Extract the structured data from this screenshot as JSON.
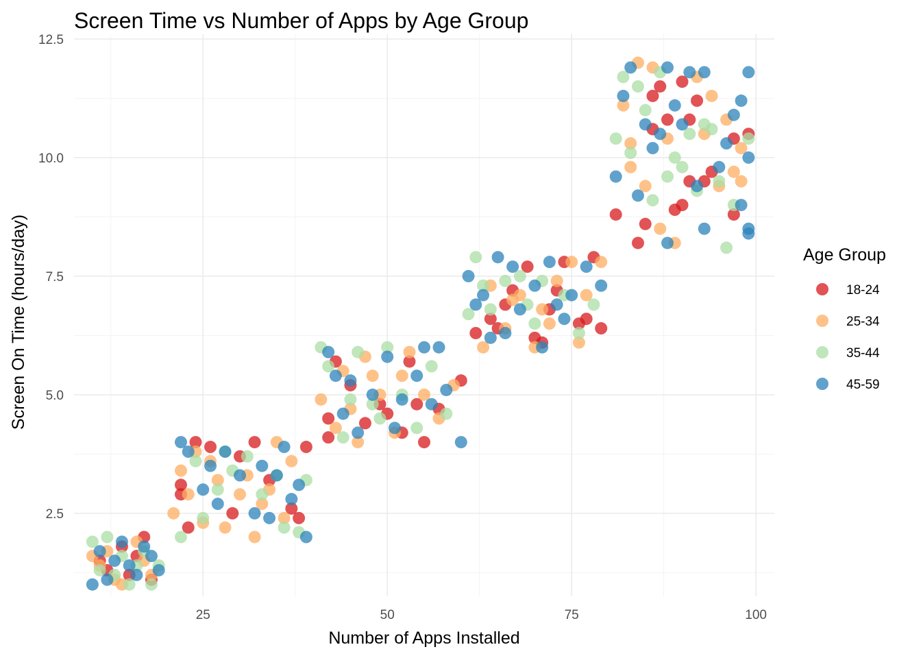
{
  "chart_data": {
    "type": "scatter",
    "title": "Screen Time vs Number of Apps by Age Group",
    "xlabel": "Number of Apps Installed",
    "ylabel": "Screen On Time (hours/day)",
    "xlim": [
      7.5,
      102.5
    ],
    "ylim": [
      0.75,
      12.6
    ],
    "x_ticks": [
      25,
      50,
      75,
      100
    ],
    "y_ticks": [
      2.5,
      5.0,
      7.5,
      10.0,
      12.5
    ],
    "x_tick_labels": [
      "25",
      "50",
      "75",
      "100"
    ],
    "y_tick_labels": [
      "2.5",
      "5.0",
      "7.5",
      "10.0",
      "12.5"
    ],
    "grid": true,
    "legend": {
      "title": "Age Group",
      "position": "right"
    },
    "series": [
      {
        "name": "18-24",
        "color": "#d7191c",
        "points": [
          [
            14,
            1.8
          ],
          [
            17,
            2.0
          ],
          [
            12,
            1.3
          ],
          [
            18,
            1.1
          ],
          [
            16,
            1.6
          ],
          [
            11,
            1.5
          ],
          [
            15,
            1.2
          ],
          [
            22,
            3.1
          ],
          [
            24,
            4.0
          ],
          [
            22,
            2.9
          ],
          [
            23,
            2.2
          ],
          [
            30,
            3.7
          ],
          [
            32,
            4.0
          ],
          [
            26,
            3.9
          ],
          [
            37,
            2.6
          ],
          [
            39,
            3.9
          ],
          [
            34,
            3.2
          ],
          [
            29,
            2.5
          ],
          [
            38,
            2.4
          ],
          [
            43,
            5.7
          ],
          [
            42,
            4.1
          ],
          [
            45,
            5.2
          ],
          [
            47,
            4.4
          ],
          [
            50,
            4.6
          ],
          [
            53,
            5.7
          ],
          [
            55,
            4.0
          ],
          [
            57,
            4.7
          ],
          [
            49,
            4.8
          ],
          [
            52,
            4.2
          ],
          [
            60,
            5.3
          ],
          [
            42,
            4.5
          ],
          [
            54,
            4.8
          ],
          [
            62,
            6.3
          ],
          [
            64,
            6.6
          ],
          [
            66,
            6.9
          ],
          [
            69,
            7.7
          ],
          [
            71,
            6.1
          ],
          [
            73,
            7.2
          ],
          [
            74,
            7.8
          ],
          [
            76,
            6.5
          ],
          [
            78,
            7.9
          ],
          [
            79,
            6.4
          ],
          [
            67,
            7.2
          ],
          [
            72,
            6.8
          ],
          [
            65,
            6.4
          ],
          [
            77,
            6.6
          ],
          [
            70,
            6.2
          ],
          [
            81,
            8.8
          ],
          [
            84,
            8.2
          ],
          [
            86,
            11.3
          ],
          [
            87,
            11.5
          ],
          [
            89,
            8.9
          ],
          [
            90,
            11.6
          ],
          [
            91,
            10.8
          ],
          [
            93,
            9.5
          ],
          [
            94,
            9.7
          ],
          [
            97,
            10.4
          ],
          [
            99,
            10.5
          ],
          [
            85,
            8.6
          ],
          [
            88,
            10.8
          ],
          [
            91,
            9.5
          ],
          [
            97,
            8.8
          ],
          [
            92,
            11.2
          ],
          [
            86,
            10.6
          ],
          [
            90,
            9.0
          ]
        ]
      },
      {
        "name": "25-34",
        "color": "#fdae61",
        "points": [
          [
            11,
            1.4
          ],
          [
            13,
            1.1
          ],
          [
            16,
            1.9
          ],
          [
            18,
            1.2
          ],
          [
            12,
            1.7
          ],
          [
            14,
            1.0
          ],
          [
            17,
            1.5
          ],
          [
            10,
            1.6
          ],
          [
            21,
            2.5
          ],
          [
            22,
            3.4
          ],
          [
            24,
            3.8
          ],
          [
            25,
            2.3
          ],
          [
            27,
            3.2
          ],
          [
            28,
            2.2
          ],
          [
            30,
            2.9
          ],
          [
            32,
            2.0
          ],
          [
            33,
            2.7
          ],
          [
            35,
            4.0
          ],
          [
            37,
            3.6
          ],
          [
            36,
            2.4
          ],
          [
            31,
            3.3
          ],
          [
            34,
            3.0
          ],
          [
            26,
            3.6
          ],
          [
            23,
            2.9
          ],
          [
            41,
            4.9
          ],
          [
            43,
            4.3
          ],
          [
            44,
            5.5
          ],
          [
            46,
            4.0
          ],
          [
            47,
            5.8
          ],
          [
            49,
            5.0
          ],
          [
            51,
            4.2
          ],
          [
            53,
            5.9
          ],
          [
            55,
            5.0
          ],
          [
            57,
            4.5
          ],
          [
            59,
            5.2
          ],
          [
            45,
            4.7
          ],
          [
            48,
            5.4
          ],
          [
            52,
            5.4
          ],
          [
            63,
            6.0
          ],
          [
            64,
            7.3
          ],
          [
            66,
            6.4
          ],
          [
            68,
            7.1
          ],
          [
            70,
            6.0
          ],
          [
            72,
            6.5
          ],
          [
            73,
            7.4
          ],
          [
            75,
            7.8
          ],
          [
            77,
            7.1
          ],
          [
            79,
            7.8
          ],
          [
            67,
            7.0
          ],
          [
            71,
            6.8
          ],
          [
            76,
            6.1
          ],
          [
            82,
            11.1
          ],
          [
            83,
            9.8
          ],
          [
            84,
            12.0
          ],
          [
            85,
            9.4
          ],
          [
            86,
            11.9
          ],
          [
            88,
            10.4
          ],
          [
            89,
            8.2
          ],
          [
            92,
            11.7
          ],
          [
            93,
            10.5
          ],
          [
            95,
            9.4
          ],
          [
            97,
            9.7
          ],
          [
            98,
            9.5
          ],
          [
            98,
            10.2
          ],
          [
            83,
            10.3
          ],
          [
            87,
            8.5
          ],
          [
            94,
            11.3
          ],
          [
            96,
            10.8
          ]
        ]
      },
      {
        "name": "35-44",
        "color": "#abdda4",
        "points": [
          [
            10,
            1.9
          ],
          [
            12,
            2.0
          ],
          [
            13,
            1.2
          ],
          [
            15,
            1.0
          ],
          [
            16,
            1.4
          ],
          [
            17,
            1.7
          ],
          [
            11,
            1.3
          ],
          [
            14,
            1.6
          ],
          [
            18,
            1.0
          ],
          [
            19,
            1.4
          ],
          [
            22,
            2.0
          ],
          [
            24,
            3.6
          ],
          [
            25,
            2.4
          ],
          [
            27,
            3.0
          ],
          [
            29,
            3.4
          ],
          [
            31,
            3.7
          ],
          [
            33,
            2.9
          ],
          [
            35,
            3.3
          ],
          [
            36,
            2.2
          ],
          [
            38,
            2.1
          ],
          [
            28,
            3.8
          ],
          [
            39,
            3.2
          ],
          [
            41,
            6.0
          ],
          [
            42,
            5.6
          ],
          [
            44,
            4.1
          ],
          [
            46,
            5.9
          ],
          [
            48,
            4.8
          ],
          [
            49,
            4.5
          ],
          [
            50,
            6.0
          ],
          [
            52,
            5.0
          ],
          [
            54,
            4.3
          ],
          [
            56,
            5.6
          ],
          [
            58,
            4.6
          ],
          [
            45,
            4.9
          ],
          [
            61,
            6.7
          ],
          [
            62,
            7.9
          ],
          [
            64,
            6.8
          ],
          [
            66,
            7.4
          ],
          [
            68,
            7.5
          ],
          [
            70,
            6.5
          ],
          [
            71,
            7.4
          ],
          [
            74,
            7.1
          ],
          [
            76,
            6.3
          ],
          [
            78,
            6.9
          ],
          [
            63,
            7.3
          ],
          [
            69,
            6.9
          ],
          [
            81,
            10.4
          ],
          [
            82,
            11.7
          ],
          [
            84,
            11.5
          ],
          [
            85,
            11.0
          ],
          [
            87,
            11.8
          ],
          [
            88,
            9.6
          ],
          [
            90,
            9.8
          ],
          [
            91,
            10.5
          ],
          [
            93,
            10.7
          ],
          [
            95,
            9.5
          ],
          [
            96,
            8.1
          ],
          [
            97,
            9.0
          ],
          [
            99,
            10.4
          ],
          [
            83,
            10.1
          ],
          [
            86,
            9.1
          ],
          [
            89,
            10.0
          ],
          [
            92,
            9.3
          ],
          [
            94,
            10.6
          ]
        ]
      },
      {
        "name": "45-59",
        "color": "#2b83ba",
        "points": [
          [
            10,
            1.0
          ],
          [
            11,
            1.7
          ],
          [
            13,
            1.5
          ],
          [
            14,
            1.9
          ],
          [
            16,
            1.2
          ],
          [
            17,
            1.8
          ],
          [
            18,
            1.6
          ],
          [
            19,
            1.3
          ],
          [
            12,
            1.1
          ],
          [
            15,
            1.4
          ],
          [
            22,
            4.0
          ],
          [
            23,
            3.8
          ],
          [
            25,
            3.0
          ],
          [
            26,
            3.5
          ],
          [
            28,
            3.8
          ],
          [
            30,
            3.3
          ],
          [
            32,
            2.5
          ],
          [
            33,
            3.5
          ],
          [
            35,
            3.3
          ],
          [
            36,
            3.9
          ],
          [
            37,
            2.8
          ],
          [
            38,
            3.1
          ],
          [
            39,
            2.0
          ],
          [
            34,
            2.4
          ],
          [
            27,
            2.7
          ],
          [
            42,
            5.9
          ],
          [
            43,
            5.4
          ],
          [
            45,
            5.3
          ],
          [
            46,
            4.2
          ],
          [
            48,
            5.0
          ],
          [
            50,
            5.8
          ],
          [
            52,
            4.9
          ],
          [
            54,
            5.4
          ],
          [
            55,
            6.0
          ],
          [
            56,
            4.8
          ],
          [
            58,
            5.1
          ],
          [
            60,
            4.0
          ],
          [
            57,
            6.0
          ],
          [
            44,
            4.6
          ],
          [
            51,
            4.3
          ],
          [
            61,
            7.5
          ],
          [
            62,
            6.9
          ],
          [
            63,
            7.1
          ],
          [
            65,
            7.9
          ],
          [
            67,
            7.7
          ],
          [
            68,
            6.8
          ],
          [
            70,
            7.3
          ],
          [
            72,
            7.8
          ],
          [
            73,
            6.9
          ],
          [
            75,
            7.1
          ],
          [
            77,
            7.7
          ],
          [
            79,
            7.3
          ],
          [
            64,
            6.2
          ],
          [
            74,
            6.6
          ],
          [
            71,
            6.0
          ],
          [
            66,
            6.3
          ],
          [
            81,
            9.6
          ],
          [
            82,
            11.3
          ],
          [
            83,
            11.9
          ],
          [
            84,
            9.2
          ],
          [
            85,
            10.7
          ],
          [
            86,
            10.2
          ],
          [
            88,
            11.9
          ],
          [
            89,
            11.1
          ],
          [
            90,
            10.7
          ],
          [
            91,
            11.8
          ],
          [
            92,
            9.4
          ],
          [
            93,
            11.8
          ],
          [
            95,
            9.8
          ],
          [
            96,
            10.3
          ],
          [
            97,
            10.9
          ],
          [
            98,
            11.2
          ],
          [
            99,
            11.8
          ],
          [
            99,
            8.4
          ],
          [
            99,
            8.5
          ],
          [
            98,
            9.0
          ],
          [
            88,
            8.2
          ],
          [
            93,
            8.5
          ],
          [
            99,
            10.0
          ],
          [
            87,
            10.5
          ]
        ]
      }
    ]
  }
}
